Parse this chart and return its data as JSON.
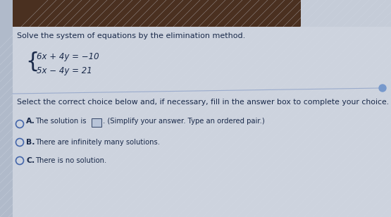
{
  "bg_top_color": "#4a3020",
  "bg_main_color": "#cdd3de",
  "bg_content_color": "#d8dde8",
  "title": "Solve the system of equations by the elimination method.",
  "eq1": "6x + 4y = −10",
  "eq2": "5x − 4y = 21",
  "select_text": "Select the correct choice below and, if necessary, fill in the answer box to complete your choice.",
  "title_fontsize": 8.0,
  "eq_fontsize": 8.5,
  "text_fontsize": 7.8,
  "small_fontsize": 7.2,
  "text_color": "#1a2a4a",
  "circle_color": "#4466aa",
  "divider_color": "#9aabcc",
  "answer_box_color": "#b8c4d8",
  "sidebar_color": "#b0baca",
  "top_bar_width": 0.77
}
